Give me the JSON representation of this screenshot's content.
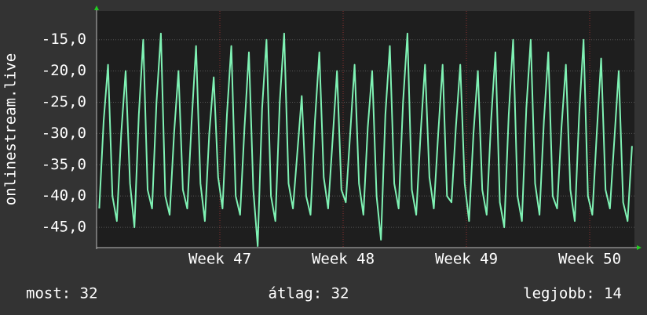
{
  "chart_data": {
    "type": "line",
    "y_label": "onlinestream.live",
    "color": "#7ff2b4",
    "grid": true,
    "xlim": [
      0,
      30.54
    ],
    "xticks": [
      {
        "value": 7,
        "label": "Week 47"
      },
      {
        "value": 14,
        "label": "Week 48"
      },
      {
        "value": 21,
        "label": "Week 49"
      },
      {
        "value": 28,
        "label": "Week 50"
      }
    ],
    "ylim": [
      -48.25,
      -10.4
    ],
    "yticks": [
      {
        "value": -15,
        "label": "-15,0"
      },
      {
        "value": -20,
        "label": "-20,0"
      },
      {
        "value": -25,
        "label": "-25,0"
      },
      {
        "value": -30,
        "label": "-30,0"
      },
      {
        "value": -35,
        "label": "-35,0"
      },
      {
        "value": -40,
        "label": "-40,0"
      },
      {
        "value": -45,
        "label": "-45,0"
      }
    ],
    "x": [
      0.15,
      0.4,
      0.65,
      0.9,
      1.15,
      1.4,
      1.65,
      1.9,
      2.15,
      2.4,
      2.65,
      2.9,
      3.15,
      3.4,
      3.65,
      3.9,
      4.15,
      4.4,
      4.65,
      4.9,
      5.15,
      5.4,
      5.65,
      5.9,
      6.15,
      6.4,
      6.65,
      6.9,
      7.15,
      7.4,
      7.65,
      7.9,
      8.15,
      8.4,
      8.65,
      8.9,
      9.15,
      9.4,
      9.65,
      9.9,
      10.15,
      10.4,
      10.65,
      10.9,
      11.15,
      11.4,
      11.65,
      11.9,
      12.15,
      12.4,
      12.65,
      12.9,
      13.15,
      13.4,
      13.65,
      13.9,
      14.15,
      14.4,
      14.65,
      14.9,
      15.15,
      15.4,
      15.65,
      15.9,
      16.15,
      16.4,
      16.65,
      16.9,
      17.15,
      17.4,
      17.65,
      17.9,
      18.15,
      18.4,
      18.65,
      18.9,
      19.15,
      19.4,
      19.65,
      19.9,
      20.15,
      20.4,
      20.65,
      20.9,
      21.15,
      21.4,
      21.65,
      21.9,
      22.15,
      22.4,
      22.65,
      22.9,
      23.15,
      23.4,
      23.65,
      23.9,
      24.15,
      24.4,
      24.65,
      24.9,
      25.15,
      25.4,
      25.65,
      25.9,
      26.15,
      26.4,
      26.65,
      26.9,
      27.15,
      27.4,
      27.65,
      27.9,
      28.15,
      28.4,
      28.65,
      28.9,
      29.15,
      29.4,
      29.65,
      29.9,
      30.15,
      30.4
    ],
    "values": [
      -42,
      -28,
      -19,
      -40,
      -44,
      -30,
      -20,
      -38,
      -45,
      -27,
      -15,
      -39,
      -42,
      -25,
      -14,
      -40,
      -43,
      -30,
      -20,
      -39,
      -42,
      -28,
      -16,
      -38,
      -44,
      -30,
      -21,
      -37,
      -42,
      -27,
      -16,
      -40,
      -43,
      -29,
      -17,
      -39,
      -48,
      -26,
      -15,
      -40,
      -44,
      -25,
      -14,
      -38,
      -42,
      -33,
      -24,
      -40,
      -43,
      -28,
      -17,
      -37,
      -42,
      -31,
      -20,
      -39,
      -41,
      -30,
      -19,
      -38,
      -43,
      -29,
      -20,
      -40,
      -47,
      -27,
      -16,
      -38,
      -42,
      -25,
      -14,
      -39,
      -43,
      -30,
      -19,
      -37,
      -42,
      -30,
      -19,
      -40,
      -41,
      -29,
      -19,
      -38,
      -44,
      -30,
      -20,
      -39,
      -43,
      -28,
      -17,
      -41,
      -45,
      -27,
      -15,
      -40,
      -44,
      -26,
      -15,
      -38,
      -43,
      -28,
      -17,
      -40,
      -42,
      -29,
      -19,
      -39,
      -44,
      -27,
      -15,
      -40,
      -43,
      -30,
      -18,
      -39,
      -42,
      -31,
      -20,
      -41,
      -44,
      -32
    ],
    "footer": [
      "most: 32",
      "átlag: 32",
      "legjobb: 14"
    ]
  }
}
